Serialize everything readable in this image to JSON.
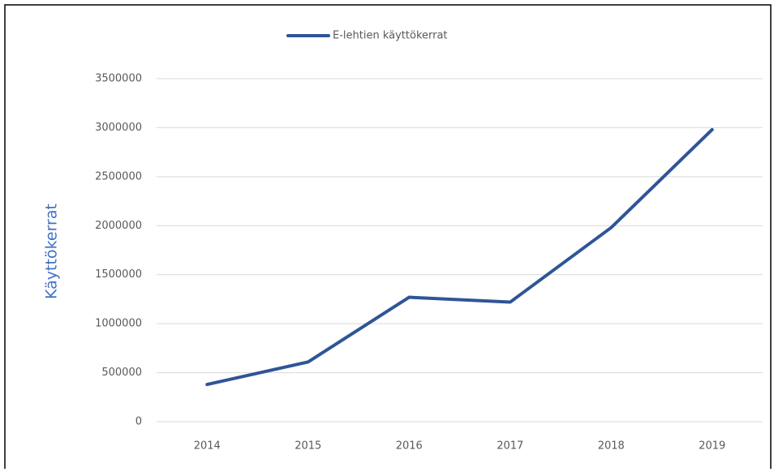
{
  "chart_data": {
    "type": "line",
    "ylabel": "Käyttökerrat",
    "categories": [
      "2014",
      "2015",
      "2016",
      "2017",
      "2018",
      "2019"
    ],
    "series": [
      {
        "name": "E-lehtien käyttökerrat",
        "color": "#2f5597",
        "values": [
          380000,
          610000,
          1270000,
          1220000,
          1980000,
          2980000
        ]
      }
    ],
    "ylim": [
      0,
      3500000
    ],
    "yticks": [
      0,
      500000,
      1000000,
      1500000,
      2000000,
      2500000,
      3000000,
      3500000
    ],
    "grid": true,
    "legend": "top"
  }
}
